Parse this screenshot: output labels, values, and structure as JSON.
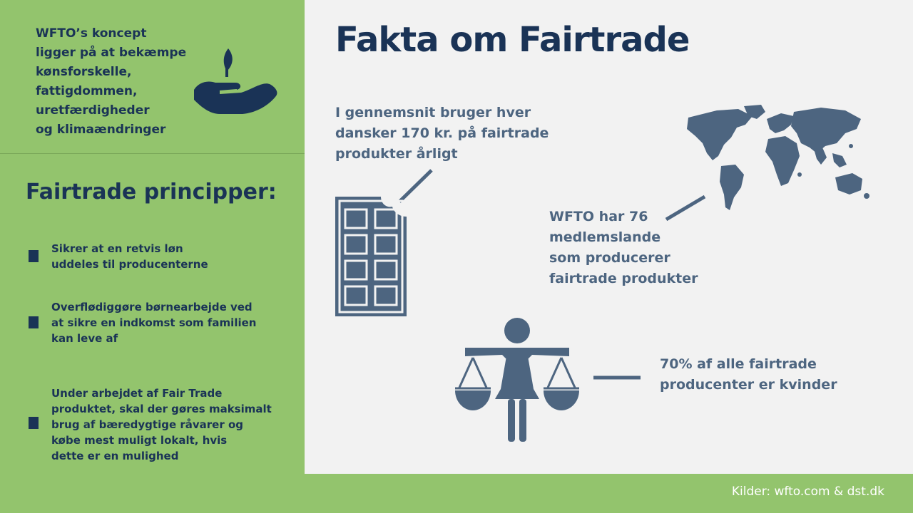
{
  "intro": {
    "text": "WFTO’s koncept\nligger på at bekæmpe\nkønsforskelle,\nfattigdommen,\nuretfærdigheder\nog klimaændringer"
  },
  "principles": {
    "title": "Fairtrade principper:",
    "items": [
      "Sikrer at en retvis løn\nuddeles til producenterne",
      "Overflødiggøre børnearbejde ved\nat sikre en indkomst som familien\nkan leve af",
      "Under arbejdet af Fair Trade\nproduktet, skal der gøres maksimalt\nbrug af bæredygtige råvarer og\nkøbe mest muligt lokalt, hvis\ndette er en mulighed"
    ]
  },
  "main": {
    "title": "Fakta om Fairtrade",
    "facts": [
      "I gennemsnit bruger hver\ndansker 170 kr. på fairtrade\nprodukter årligt",
      "WFTO har 76\nmedlemslande\nsom producerer\nfairtrade produkter",
      "70% af alle fairtrade\nproducenter er kvinder"
    ]
  },
  "footer": {
    "source": "Kilder: wfto.com & dst.dk"
  },
  "colors": {
    "green": "#93c46d",
    "navy": "#1a3356",
    "slate": "#4d6580",
    "panel": "#f2f2f2"
  },
  "icons": [
    "plant-hand-icon",
    "chocolate-bar-icon",
    "world-map-icon",
    "woman-scales-icon"
  ]
}
